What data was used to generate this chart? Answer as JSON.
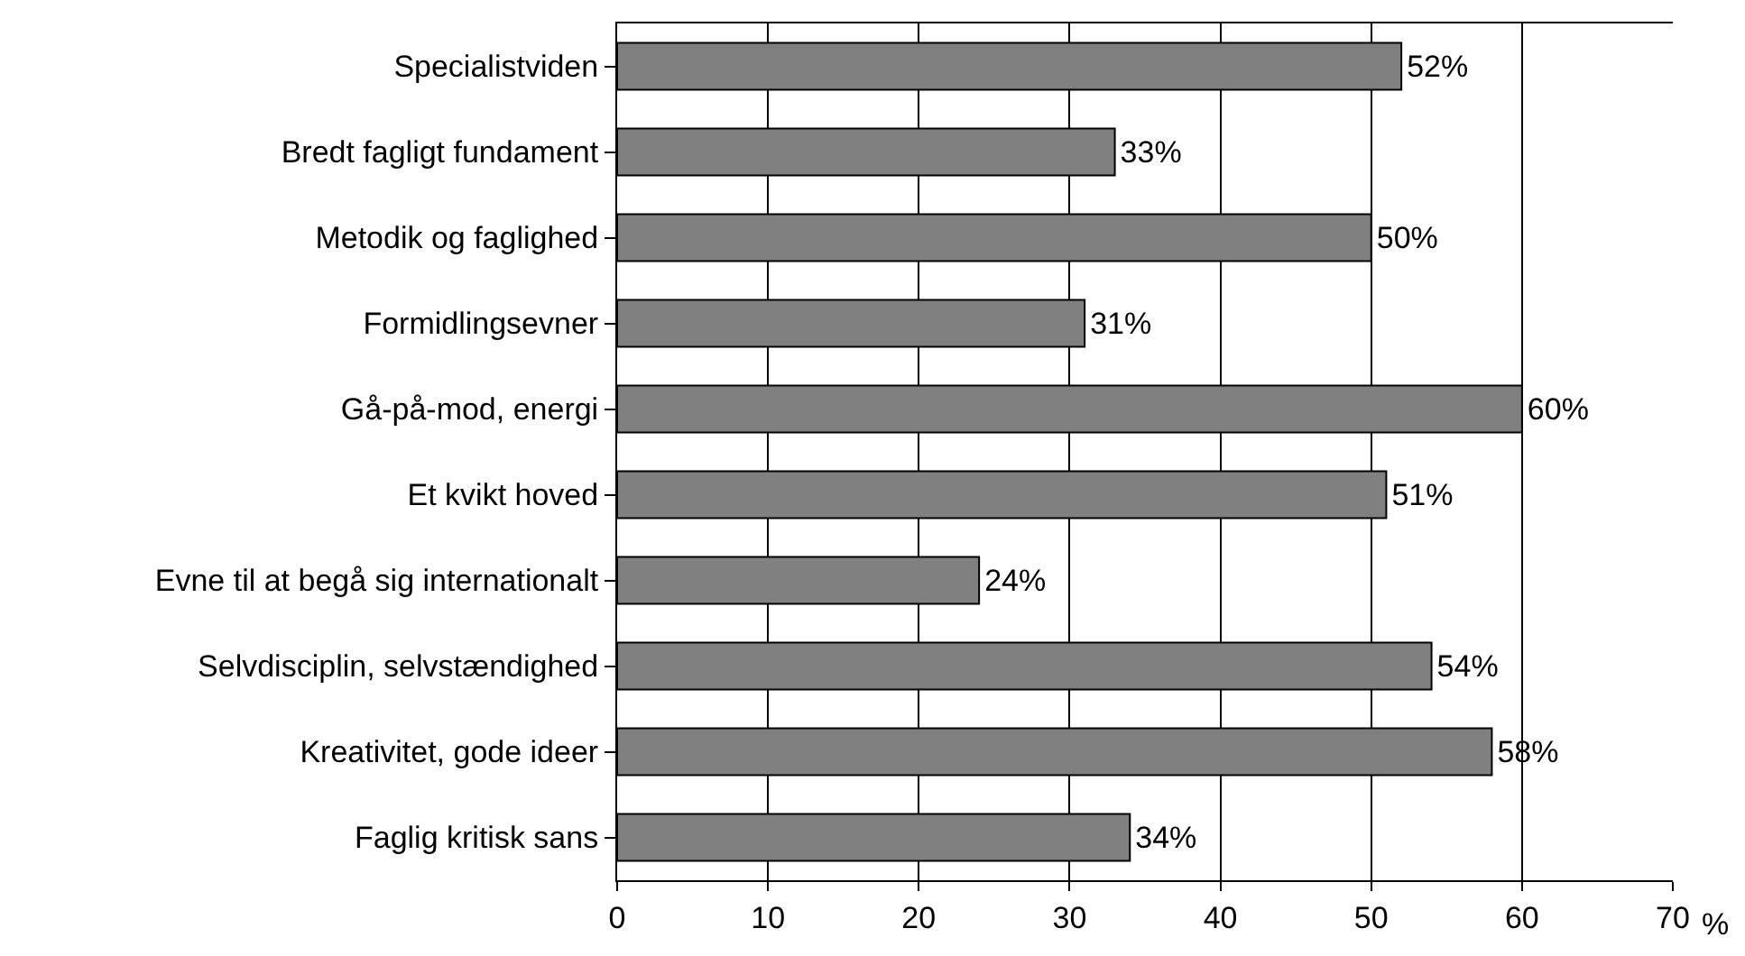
{
  "chart_data": {
    "type": "bar",
    "orientation": "horizontal",
    "categories": [
      "Specialistviden",
      "Bredt fagligt fundament",
      "Metodik og faglighed",
      "Formidlingsevner",
      "Gå-på-mod, energi",
      "Et kvikt hoved",
      "Evne til at begå sig internationalt",
      "Selvdisciplin, selvstændighed",
      "Kreativitet, gode ideer",
      "Faglig kritisk sans"
    ],
    "values": [
      52,
      33,
      50,
      31,
      60,
      51,
      24,
      54,
      58,
      34
    ],
    "value_labels": [
      "52%",
      "33%",
      "50%",
      "31%",
      "60%",
      "51%",
      "24%",
      "54%",
      "58%",
      "34%"
    ],
    "color": "#808080",
    "xlim": [
      0,
      70
    ],
    "xticks": [
      0,
      10,
      20,
      30,
      40,
      50,
      60,
      70
    ],
    "xlabel": "%",
    "grid": "x",
    "legend": false
  }
}
